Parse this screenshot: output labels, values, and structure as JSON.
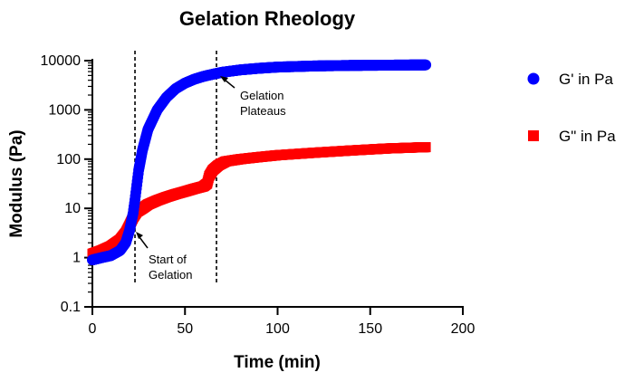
{
  "chart_data": {
    "type": "scatter",
    "title": "Gelation Rheology",
    "xlabel": "Time (min)",
    "ylabel": "Modulus (Pa)",
    "x_scale": "linear",
    "y_scale": "log",
    "xlim": [
      0,
      200
    ],
    "ylim": [
      0.1,
      10000
    ],
    "x_ticks": [
      0,
      50,
      100,
      150,
      200
    ],
    "y_ticks": [
      0.1,
      1,
      10,
      100,
      1000,
      10000
    ],
    "x_tick_labels": [
      "0",
      "50",
      "100",
      "150",
      "200"
    ],
    "y_tick_labels": [
      "0.1",
      "1",
      "10",
      "100",
      "1000",
      "10000"
    ],
    "grid": false,
    "legend_position": "right",
    "series": [
      {
        "name": "G' in Pa",
        "color": "#0000ff",
        "marker": "circle",
        "points": [
          [
            0,
            0.9
          ],
          [
            5,
            1.0
          ],
          [
            10,
            1.1
          ],
          [
            15,
            1.4
          ],
          [
            18,
            2.0
          ],
          [
            20,
            3.5
          ],
          [
            22,
            8
          ],
          [
            23,
            15
          ],
          [
            24,
            30
          ],
          [
            25,
            60
          ],
          [
            27,
            150
          ],
          [
            30,
            400
          ],
          [
            35,
            1000
          ],
          [
            40,
            1800
          ],
          [
            45,
            2700
          ],
          [
            50,
            3500
          ],
          [
            55,
            4200
          ],
          [
            60,
            4800
          ],
          [
            65,
            5300
          ],
          [
            70,
            5800
          ],
          [
            80,
            6500
          ],
          [
            90,
            7000
          ],
          [
            100,
            7400
          ],
          [
            120,
            7800
          ],
          [
            140,
            8000
          ],
          [
            160,
            8100
          ],
          [
            180,
            8200
          ]
        ]
      },
      {
        "name": "G\" in Pa",
        "color": "#ff0000",
        "marker": "square",
        "points": [
          [
            0,
            1.2
          ],
          [
            5,
            1.4
          ],
          [
            10,
            1.7
          ],
          [
            15,
            2.3
          ],
          [
            18,
            3.2
          ],
          [
            20,
            4.5
          ],
          [
            22,
            6.5
          ],
          [
            24,
            8.5
          ],
          [
            27,
            10
          ],
          [
            30,
            12
          ],
          [
            35,
            14.5
          ],
          [
            40,
            17
          ],
          [
            45,
            19.5
          ],
          [
            50,
            22
          ],
          [
            55,
            25
          ],
          [
            60,
            28
          ],
          [
            62,
            32
          ],
          [
            63,
            45
          ],
          [
            65,
            60
          ],
          [
            68,
            75
          ],
          [
            72,
            90
          ],
          [
            80,
            100
          ],
          [
            90,
            110
          ],
          [
            100,
            120
          ],
          [
            120,
            135
          ],
          [
            140,
            150
          ],
          [
            160,
            165
          ],
          [
            180,
            175
          ]
        ]
      }
    ],
    "vlines": [
      23,
      67
    ],
    "annotations": [
      {
        "lines": [
          "Gelation",
          "Plateaus"
        ],
        "x": 67,
        "y": 5000
      },
      {
        "lines": [
          "Start of",
          "Gelation"
        ],
        "x": 23,
        "y": 8
      }
    ]
  }
}
